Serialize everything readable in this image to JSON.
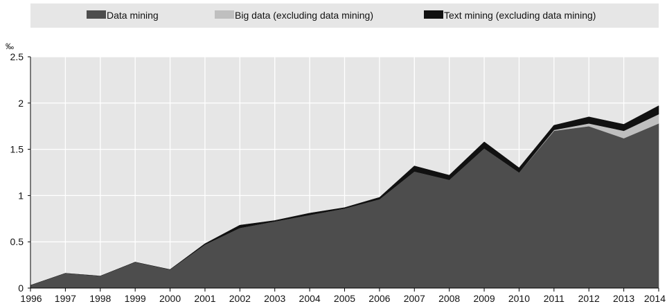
{
  "chart_data": {
    "type": "area",
    "stacked": true,
    "y_unit": "‰",
    "x": [
      "1996",
      "1997",
      "1998",
      "1999",
      "2000",
      "2001",
      "2002",
      "2003",
      "2004",
      "2005",
      "2006",
      "2007",
      "2008",
      "2009",
      "2010",
      "2011",
      "2012",
      "2013",
      "2014"
    ],
    "series": [
      {
        "name": "Data mining",
        "color": "#4d4d4d",
        "values": [
          0.03,
          0.16,
          0.13,
          0.28,
          0.2,
          0.47,
          0.65,
          0.72,
          0.79,
          0.86,
          0.96,
          1.26,
          1.17,
          1.51,
          1.25,
          1.7,
          1.75,
          1.62,
          1.78
        ]
      },
      {
        "name": "Big data (excluding data mining)",
        "color": "#bfbfbf",
        "values": [
          0,
          0,
          0,
          0,
          0,
          0,
          0,
          0,
          0,
          0,
          0,
          0,
          0,
          0,
          0,
          0.01,
          0.03,
          0.08,
          0.1
        ]
      },
      {
        "name": "Text mining (excluding data mining)",
        "color": "#111111",
        "values": [
          0,
          0,
          0,
          0,
          0,
          0.01,
          0.03,
          0.01,
          0.02,
          0.01,
          0.02,
          0.06,
          0.05,
          0.07,
          0.05,
          0.05,
          0.07,
          0.07,
          0.09
        ]
      }
    ],
    "ylim": [
      0,
      2.5
    ],
    "yticks": [
      "0",
      "0.5",
      "1",
      "1.5",
      "2",
      "2.5"
    ],
    "grid": true,
    "legend_position": "top"
  }
}
